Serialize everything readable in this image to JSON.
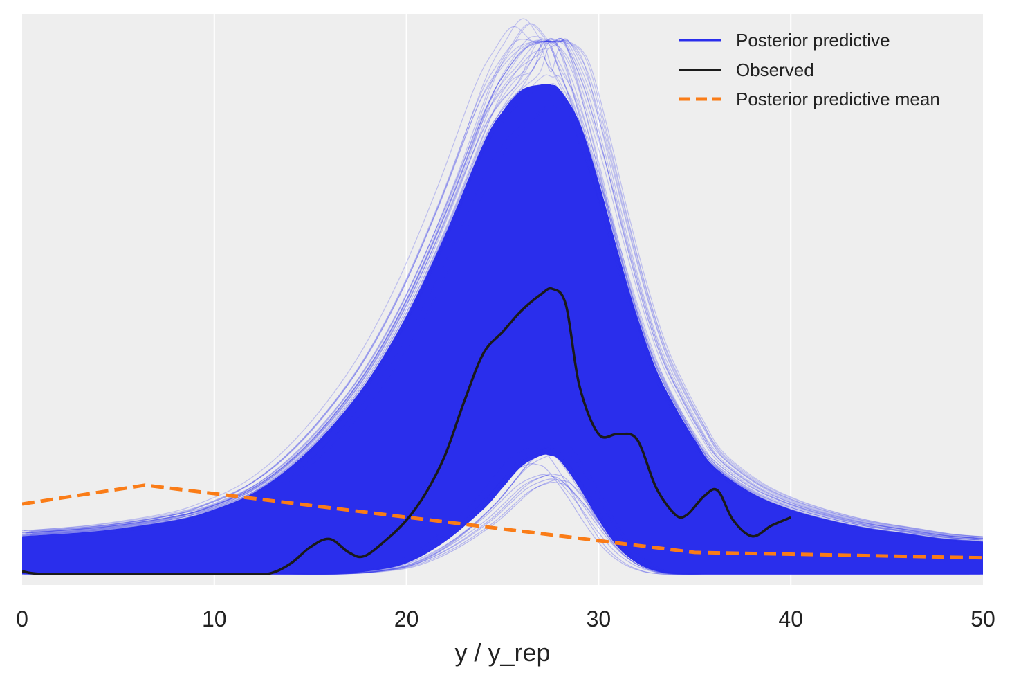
{
  "chart_data": {
    "type": "line",
    "title": "",
    "xlabel": "y / y_rep",
    "ylabel": "",
    "xlim": [
      0,
      50
    ],
    "ylim": [
      0,
      1
    ],
    "x_ticks": [
      0,
      10,
      20,
      30,
      40,
      50
    ],
    "x_tick_labels": [
      "0",
      "10",
      "20",
      "30",
      "40",
      "50"
    ],
    "grid": "vertical",
    "legend_position": "top-right",
    "background": "#EEEEEE",
    "series": [
      {
        "name": "Posterior predictive",
        "color": "#2A2EEC",
        "style": "solid",
        "kind": "sample-envelope",
        "x": [
          0,
          4,
          8,
          10,
          12,
          14,
          16,
          18,
          20,
          22,
          24,
          25,
          26,
          27,
          27.5,
          28,
          29,
          30,
          31,
          32,
          33,
          34,
          35,
          36,
          38,
          40,
          42,
          44,
          46,
          48,
          50
        ],
        "upper": [
          0.07,
          0.08,
          0.1,
          0.12,
          0.15,
          0.2,
          0.27,
          0.36,
          0.48,
          0.63,
          0.8,
          0.86,
          0.9,
          0.91,
          0.91,
          0.9,
          0.84,
          0.73,
          0.6,
          0.48,
          0.38,
          0.31,
          0.25,
          0.2,
          0.15,
          0.12,
          0.1,
          0.085,
          0.075,
          0.065,
          0.06
        ],
        "lower": [
          0.0,
          0.0,
          0.0,
          0.0,
          0.0,
          0.0,
          0.0,
          0.005,
          0.02,
          0.06,
          0.12,
          0.16,
          0.2,
          0.22,
          0.22,
          0.21,
          0.16,
          0.1,
          0.05,
          0.02,
          0.005,
          0.0,
          0.0,
          0.0,
          0.0,
          0.0,
          0.0,
          0.0,
          0.0,
          0.0,
          0.0
        ],
        "peak_max": 0.99
      },
      {
        "name": "Observed",
        "color": "#1A1A1A",
        "style": "solid",
        "x": [
          0,
          1,
          4,
          8,
          12,
          13,
          14,
          15,
          16,
          17,
          17.8,
          19,
          20,
          21,
          22,
          23,
          24,
          25,
          26,
          27,
          27.6,
          28.3,
          29,
          30,
          31,
          32,
          33,
          34,
          34.6,
          35.5,
          36.2,
          37,
          38,
          39,
          40
        ],
        "y": [
          0.005,
          0.0,
          0.0,
          0.0,
          0.0,
          0.002,
          0.02,
          0.05,
          0.065,
          0.04,
          0.033,
          0.065,
          0.1,
          0.15,
          0.22,
          0.32,
          0.41,
          0.45,
          0.49,
          0.52,
          0.53,
          0.5,
          0.35,
          0.26,
          0.26,
          0.25,
          0.16,
          0.11,
          0.11,
          0.145,
          0.155,
          0.1,
          0.07,
          0.09,
          0.105
        ]
      },
      {
        "name": "Posterior predictive mean",
        "color": "#FA7C17",
        "style": "dashed",
        "x": [
          0,
          6.4,
          35,
          50
        ],
        "y": [
          0.13,
          0.165,
          0.04,
          0.03
        ]
      }
    ]
  }
}
